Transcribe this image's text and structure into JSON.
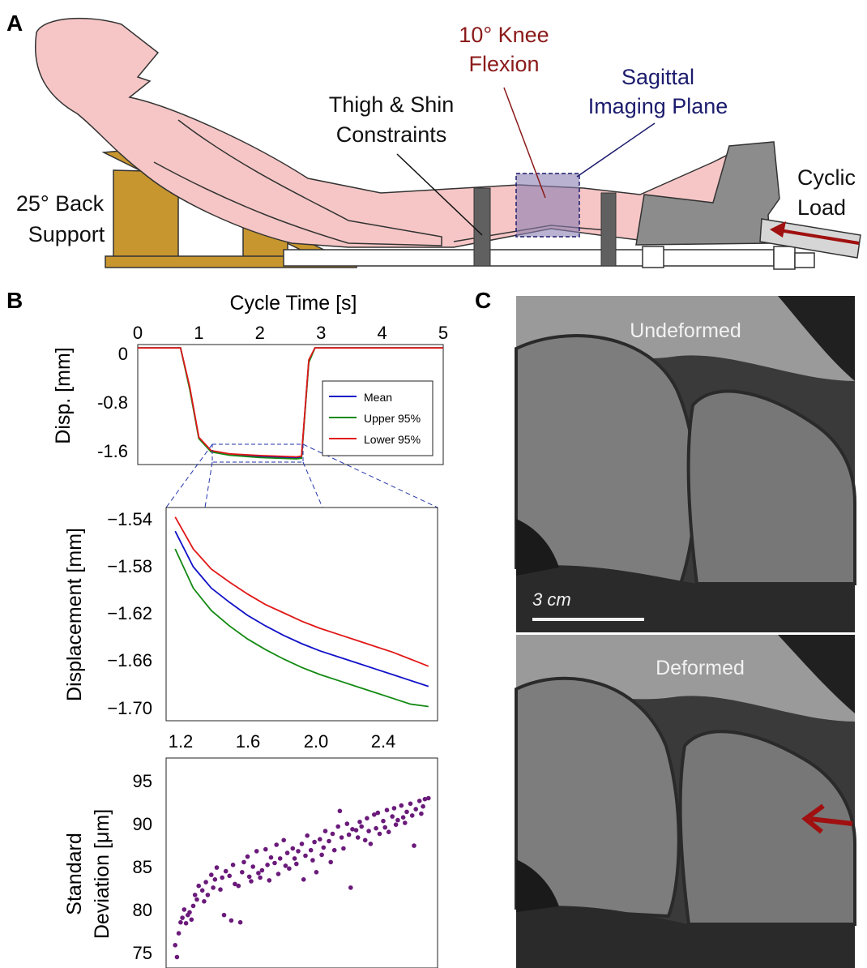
{
  "panel_a": {
    "letter": "A",
    "knee_flexion": [
      "10° Knee",
      "Flexion"
    ],
    "imaging_plane": [
      "Sagittal",
      "Imaging Plane"
    ],
    "constraints": [
      "Thigh & Shin",
      "Constraints"
    ],
    "back_support": [
      "25° Back",
      "Support"
    ],
    "cyclic_load": [
      "Cyclic",
      "Load"
    ],
    "colors": {
      "skin": "#f6c6c6",
      "wood": "#c8962e",
      "gray": "#8c8c8c",
      "red_label": "#8b1a1a",
      "blue_label": "#1c1c6e"
    }
  },
  "panel_b": {
    "letter": "B",
    "top_xlabel": "Cycle Time [s]",
    "top_ylabel": "Disp. [mm]",
    "top_xticks": [
      "0",
      "1",
      "2",
      "3",
      "4",
      "5"
    ],
    "top_yticks": [
      "0",
      "-0.8",
      "-1.6"
    ],
    "legend": [
      "Mean",
      "Upper 95%",
      "Lower 95%"
    ],
    "mid_ylabel": "Displacement [mm]",
    "mid_xticks": [
      "1.2",
      "1.6",
      "2.0",
      "2.4"
    ],
    "mid_yticks": [
      "−1.54",
      "−1.58",
      "−1.62",
      "−1.66",
      "−1.70"
    ],
    "bot_ylabel": [
      "Standard",
      "Deviation [μm]"
    ],
    "bot_yticks": [
      "95",
      "90",
      "85",
      "80",
      "75"
    ],
    "colors": {
      "mean": "#1010c8",
      "upper": "#138a13",
      "lower": "#e01818",
      "sd": "#6a1a7a"
    }
  },
  "panel_c": {
    "letter": "C",
    "top_label": "Undeformed",
    "scale_label": "3 cm",
    "bottom_label": "Deformed"
  },
  "chart_data": [
    {
      "type": "line",
      "xlabel": "Cycle Time [s]",
      "ylabel": "Disp. [mm]",
      "xlim": [
        0,
        5
      ],
      "ylim": [
        -1.75,
        0.05
      ],
      "series": [
        {
          "name": "Mean",
          "x": [
            0,
            0.7,
            0.85,
            1.0,
            1.2,
            1.5,
            2.0,
            2.6,
            2.68,
            2.8,
            2.9,
            5
          ],
          "y": [
            0,
            0,
            -0.6,
            -1.35,
            -1.55,
            -1.6,
            -1.63,
            -1.65,
            -1.64,
            -0.2,
            0,
            0
          ]
        },
        {
          "name": "Upper 95%",
          "x": [
            0,
            0.7,
            0.85,
            1.0,
            1.2,
            1.5,
            2.0,
            2.6,
            2.68,
            2.8,
            2.9,
            5
          ],
          "y": [
            0,
            0,
            -0.62,
            -1.36,
            -1.56,
            -1.61,
            -1.645,
            -1.665,
            -1.655,
            -0.22,
            0,
            0
          ]
        },
        {
          "name": "Lower 95%",
          "x": [
            0,
            0.7,
            0.85,
            1.0,
            1.2,
            1.5,
            2.0,
            2.6,
            2.68,
            2.8,
            2.9,
            5
          ],
          "y": [
            0,
            0,
            -0.58,
            -1.34,
            -1.54,
            -1.59,
            -1.615,
            -1.635,
            -1.625,
            -0.18,
            0,
            0
          ]
        }
      ]
    },
    {
      "type": "line",
      "ylabel": "Displacement [mm]",
      "xlim": [
        1.15,
        2.65
      ],
      "ylim": [
        -1.71,
        -1.53
      ],
      "series": [
        {
          "name": "Lower 95%",
          "x": [
            1.2,
            1.3,
            1.4,
            1.5,
            1.6,
            1.7,
            1.8,
            1.9,
            2.0,
            2.1,
            2.2,
            2.3,
            2.4,
            2.5,
            2.6
          ],
          "y": [
            -1.538,
            -1.565,
            -1.582,
            -1.593,
            -1.603,
            -1.612,
            -1.619,
            -1.626,
            -1.632,
            -1.637,
            -1.642,
            -1.647,
            -1.652,
            -1.658,
            -1.664
          ]
        },
        {
          "name": "Mean",
          "x": [
            1.2,
            1.3,
            1.4,
            1.5,
            1.6,
            1.7,
            1.8,
            1.9,
            2.0,
            2.1,
            2.2,
            2.3,
            2.4,
            2.5,
            2.6
          ],
          "y": [
            -1.55,
            -1.58,
            -1.598,
            -1.61,
            -1.621,
            -1.63,
            -1.638,
            -1.645,
            -1.651,
            -1.656,
            -1.661,
            -1.666,
            -1.671,
            -1.676,
            -1.681
          ]
        },
        {
          "name": "Upper 95%",
          "x": [
            1.2,
            1.3,
            1.4,
            1.5,
            1.6,
            1.7,
            1.8,
            1.9,
            2.0,
            2.1,
            2.2,
            2.3,
            2.4,
            2.5,
            2.6
          ],
          "y": [
            -1.565,
            -1.598,
            -1.617,
            -1.63,
            -1.641,
            -1.65,
            -1.658,
            -1.665,
            -1.671,
            -1.676,
            -1.681,
            -1.686,
            -1.691,
            -1.696,
            -1.698
          ]
        }
      ]
    },
    {
      "type": "scatter",
      "ylabel": "Standard Deviation [μm]",
      "xlim": [
        1.15,
        2.65
      ],
      "ylim": [
        74,
        97
      ],
      "x": [
        1.2,
        1.21,
        1.22,
        1.23,
        1.24,
        1.25,
        1.26,
        1.27,
        1.28,
        1.29,
        1.3,
        1.31,
        1.32,
        1.33,
        1.35,
        1.36,
        1.37,
        1.38,
        1.4,
        1.41,
        1.42,
        1.43,
        1.45,
        1.46,
        1.47,
        1.48,
        1.5,
        1.51,
        1.52,
        1.53,
        1.55,
        1.56,
        1.57,
        1.58,
        1.6,
        1.61,
        1.62,
        1.63,
        1.65,
        1.66,
        1.67,
        1.68,
        1.7,
        1.71,
        1.72,
        1.73,
        1.75,
        1.76,
        1.77,
        1.78,
        1.8,
        1.81,
        1.82,
        1.83,
        1.85,
        1.86,
        1.87,
        1.88,
        1.9,
        1.91,
        1.92,
        1.93,
        1.95,
        1.96,
        1.97,
        1.98,
        2.0,
        2.01,
        2.02,
        2.03,
        2.05,
        2.06,
        2.07,
        2.08,
        2.1,
        2.11,
        2.12,
        2.13,
        2.15,
        2.16,
        2.17,
        2.18,
        2.2,
        2.21,
        2.22,
        2.23,
        2.25,
        2.26,
        2.27,
        2.28,
        2.3,
        2.31,
        2.32,
        2.33,
        2.35,
        2.36,
        2.37,
        2.38,
        2.4,
        2.41,
        2.42,
        2.43,
        2.45,
        2.46,
        2.47,
        2.48,
        2.5,
        2.51,
        2.52,
        2.53,
        2.55,
        2.56,
        2.57,
        2.58,
        2.6
      ],
      "y": [
        76.5,
        75.2,
        77.8,
        79.0,
        79.5,
        80.4,
        78.9,
        79.8,
        80.1,
        79.3,
        80.8,
        82.0,
        81.5,
        83.0,
        82.5,
        81.3,
        83.4,
        82.0,
        84.2,
        82.8,
        83.7,
        85.0,
        82.6,
        83.9,
        79.8,
        84.6,
        84.1,
        79.2,
        85.3,
        83.2,
        83.0,
        79.0,
        84.5,
        85.6,
        86.2,
        84.0,
        83.5,
        85.1,
        86.8,
        84.4,
        83.9,
        84.7,
        87.0,
        85.3,
        83.6,
        86.1,
        85.5,
        87.5,
        84.3,
        86.0,
        88.0,
        85.2,
        86.6,
        84.9,
        87.1,
        86.0,
        85.4,
        86.8,
        87.6,
        83.7,
        86.3,
        88.5,
        86.9,
        85.8,
        87.8,
        84.5,
        88.1,
        86.4,
        87.2,
        89.0,
        87.9,
        85.6,
        88.7,
        86.9,
        89.5,
        91.2,
        88.3,
        87.1,
        89.8,
        88.6,
        82.8,
        89.2,
        89.1,
        88.3,
        90.0,
        89.5,
        88.0,
        90.4,
        89.0,
        87.6,
        90.8,
        89.3,
        91.0,
        88.7,
        90.1,
        89.4,
        91.3,
        88.9,
        90.6,
        91.5,
        89.7,
        90.2,
        91.8,
        90.5,
        89.9,
        91.1,
        92.0,
        90.7,
        87.4,
        91.4,
        92.3,
        90.9,
        91.7,
        92.5,
        92.6
      ]
    }
  ]
}
